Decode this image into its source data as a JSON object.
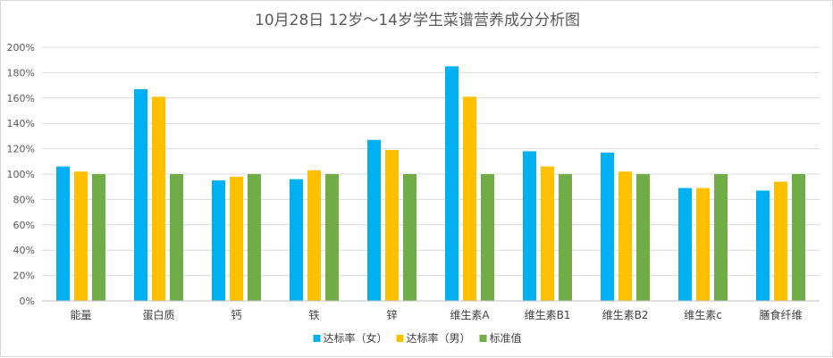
{
  "chart_data": {
    "type": "bar",
    "title": "10月28日 12岁～14岁学生菜谱营养成分分析图",
    "categories": [
      "能量",
      "蛋白质",
      "钙",
      "铁",
      "锌",
      "维生素A",
      "维生素B1",
      "维生素B2",
      "维生素c",
      "膳食纤维"
    ],
    "series": [
      {
        "name": "达标率（女）",
        "color": "#00B0F0",
        "values": [
          106,
          167,
          95,
          96,
          127,
          185,
          118,
          117,
          89,
          87
        ]
      },
      {
        "name": "达标率（男）",
        "color": "#FFC000",
        "values": [
          102,
          161,
          98,
          103,
          119,
          161,
          106,
          102,
          89,
          94
        ]
      },
      {
        "name": "标准值",
        "color": "#70AD47",
        "values": [
          100,
          100,
          100,
          100,
          100,
          100,
          100,
          100,
          100,
          100
        ]
      }
    ],
    "ylim": [
      0,
      200
    ],
    "ytick_step": 20,
    "ytick_labels": [
      "0%",
      "20%",
      "40%",
      "60%",
      "80%",
      "100%",
      "120%",
      "140%",
      "160%",
      "180%",
      "200%"
    ],
    "grid": true,
    "legend_position": "bottom"
  }
}
